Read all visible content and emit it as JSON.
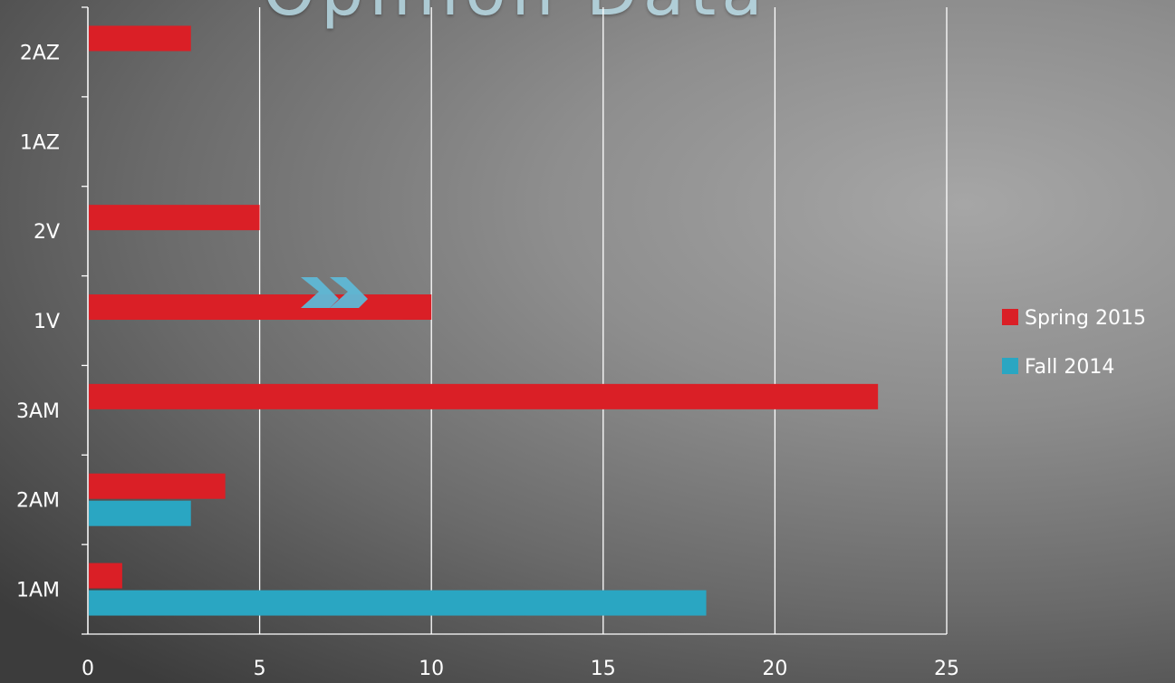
{
  "title_fragment": "Opinion Data",
  "decoration": {
    "icon": "double-chevron-icon",
    "color": "#5fb8d6"
  },
  "colors": {
    "spring": "#da1f26",
    "fall": "#2aa6c2",
    "grid": "#ffffff",
    "text": "#ffffff"
  },
  "chart_data": {
    "type": "bar",
    "orientation": "horizontal",
    "categories": [
      "1AM",
      "2AM",
      "3AM",
      "1V",
      "2V",
      "1AZ",
      "2AZ"
    ],
    "series": [
      {
        "name": "Fall 2014",
        "values": [
          18,
          3,
          0,
          0,
          0,
          0,
          0
        ],
        "color": "#2aa6c2"
      },
      {
        "name": "Spring 2015",
        "values": [
          1,
          4,
          23,
          10,
          5,
          0,
          3
        ],
        "color": "#da1f26"
      }
    ],
    "xlim": [
      0,
      25
    ],
    "xticks": [
      0,
      5,
      10,
      15,
      20,
      25
    ],
    "title": "",
    "xlabel": "",
    "ylabel": "",
    "grid": true,
    "legend_position": "right",
    "legend": [
      {
        "name": "Spring 2015",
        "color": "#da1f26"
      },
      {
        "name": "Fall 2014",
        "color": "#2aa6c2"
      }
    ]
  }
}
